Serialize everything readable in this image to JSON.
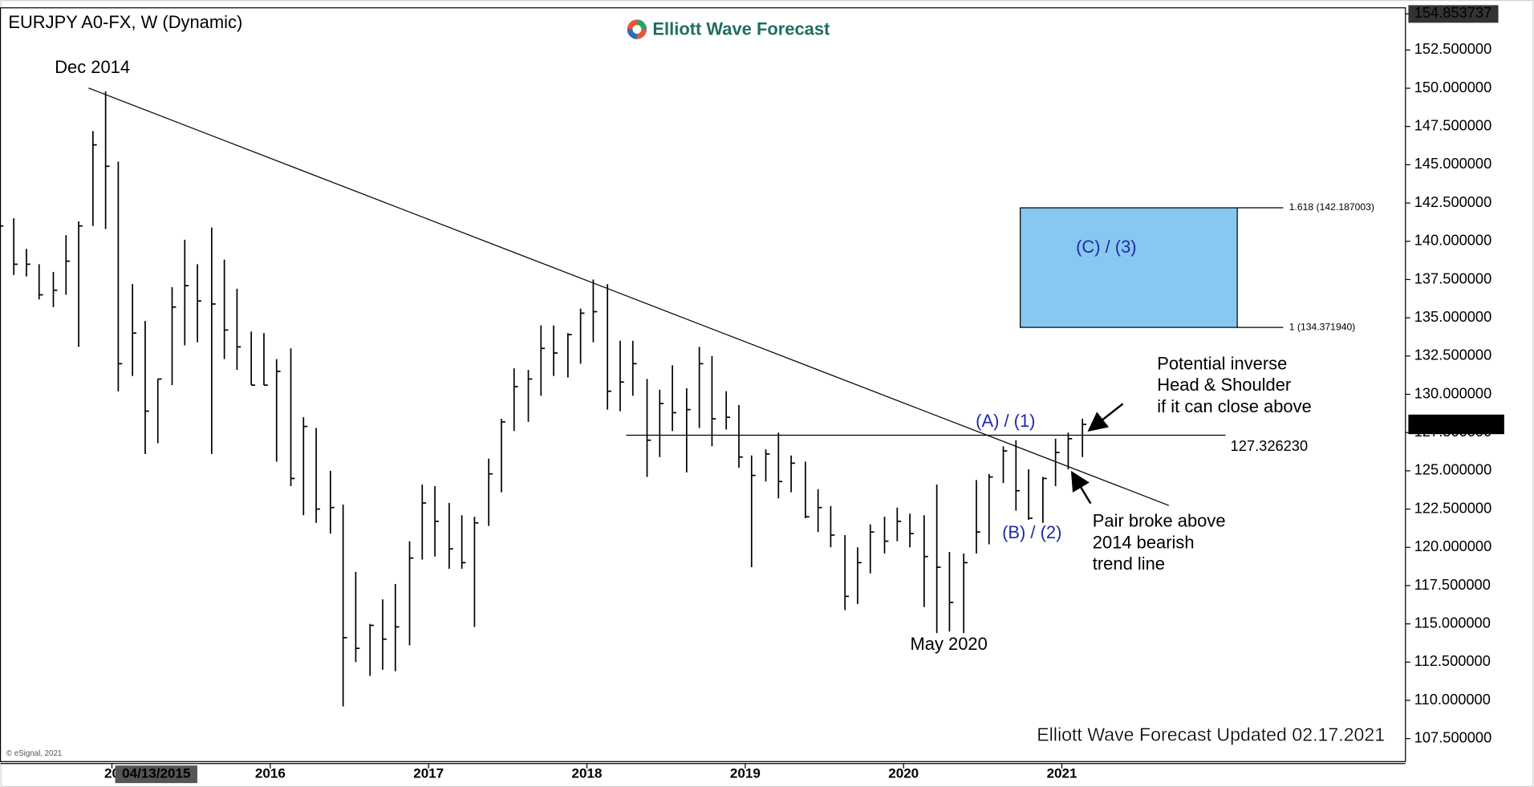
{
  "chart_data": {
    "type": "ohlc",
    "title": "EURJPY A0-FX, W (Dynamic)",
    "logo": "Elliott Wave Forecast",
    "footer": "Elliott Wave Forecast Updated 02.17.2021",
    "copyright": "© eSignal, 2021",
    "color": "#000000",
    "x": [
      2014.29,
      2014.38,
      2014.46,
      2014.54,
      2014.63,
      2014.71,
      2014.79,
      2014.88,
      2014.96,
      2015.04,
      2015.13,
      2015.21,
      2015.29,
      2015.38,
      2015.46,
      2015.54,
      2015.63,
      2015.71,
      2015.79,
      2015.88,
      2015.96,
      2016.04,
      2016.13,
      2016.21,
      2016.29,
      2016.38,
      2016.46,
      2016.54,
      2016.63,
      2016.71,
      2016.79,
      2016.88,
      2016.96,
      2017.04,
      2017.13,
      2017.21,
      2017.29,
      2017.38,
      2017.46,
      2017.54,
      2017.63,
      2017.71,
      2017.79,
      2017.88,
      2017.96,
      2018.04,
      2018.13,
      2018.21,
      2018.29,
      2018.38,
      2018.46,
      2018.54,
      2018.63,
      2018.71,
      2018.79,
      2018.88,
      2018.96,
      2019.04,
      2019.13,
      2019.21,
      2019.29,
      2019.38,
      2019.46,
      2019.54,
      2019.63,
      2019.71,
      2019.79,
      2019.88,
      2019.96,
      2020.04,
      2020.13,
      2020.21,
      2020.29,
      2020.38,
      2020.46,
      2020.54,
      2020.63,
      2020.71,
      2020.79,
      2020.88,
      2020.96,
      2021.04,
      2021.13
    ],
    "high": [
      142.0,
      141.5,
      139.5,
      138.5,
      138.0,
      140.4,
      141.3,
      147.2,
      149.8,
      145.2,
      137.2,
      134.8,
      131.0,
      137.0,
      140.1,
      138.5,
      140.9,
      138.8,
      136.9,
      134.1,
      134.0,
      132.3,
      133.0,
      128.5,
      127.8,
      125.0,
      122.8,
      118.4,
      115.0,
      116.6,
      117.6,
      120.4,
      124.1,
      124.0,
      122.9,
      122.1,
      122.0,
      125.8,
      128.4,
      131.7,
      131.6,
      134.5,
      134.5,
      134.0,
      135.6,
      137.5,
      137.2,
      133.5,
      133.5,
      131.0,
      130.3,
      131.9,
      130.4,
      133.1,
      132.5,
      130.2,
      129.3,
      126.0,
      126.4,
      127.5,
      126.0,
      125.6,
      123.8,
      122.7,
      120.8,
      120.0,
      121.5,
      122.0,
      122.6,
      122.2,
      122.1,
      124.1,
      119.7,
      119.6,
      124.4,
      124.8,
      126.6,
      127.0,
      125.1,
      124.6,
      127.1,
      127.5,
      128.4
    ],
    "low": [
      139.5,
      137.8,
      137.7,
      136.2,
      135.7,
      136.5,
      133.1,
      141.0,
      140.8,
      130.2,
      131.2,
      126.1,
      126.8,
      130.6,
      133.2,
      133.4,
      126.1,
      132.3,
      131.6,
      130.6,
      130.6,
      125.6,
      124.0,
      122.1,
      121.6,
      120.9,
      109.6,
      112.5,
      111.6,
      112.0,
      111.9,
      113.6,
      119.2,
      119.4,
      118.6,
      118.6,
      114.8,
      121.4,
      123.6,
      127.6,
      128.2,
      129.9,
      131.2,
      131.1,
      132.0,
      133.4,
      129.0,
      128.9,
      129.9,
      124.6,
      125.9,
      127.6,
      124.9,
      127.8,
      126.6,
      127.7,
      125.2,
      118.7,
      124.3,
      123.2,
      123.6,
      121.9,
      121.0,
      120.0,
      115.9,
      116.3,
      118.3,
      119.6,
      120.4,
      120.0,
      116.1,
      114.4,
      114.5,
      114.4,
      119.6,
      120.2,
      124.2,
      122.4,
      121.8,
      121.6,
      124.0,
      125.1,
      125.9
    ],
    "close": [
      141.0,
      138.5,
      138.5,
      136.5,
      136.8,
      138.7,
      141.0,
      146.3,
      144.9,
      132.0,
      134.0,
      128.9,
      131.0,
      135.7,
      137.1,
      136.1,
      135.9,
      134.2,
      133.1,
      130.6,
      130.6,
      131.5,
      124.5,
      127.9,
      122.5,
      122.6,
      114.1,
      113.4,
      114.9,
      114.0,
      114.8,
      119.3,
      122.9,
      121.7,
      119.9,
      119.0,
      121.6,
      124.8,
      128.2,
      130.5,
      131.0,
      133.0,
      132.7,
      133.9,
      135.3,
      135.4,
      130.2,
      130.8,
      132.0,
      127.0,
      129.4,
      128.8,
      129.0,
      132.0,
      128.4,
      128.5,
      125.9,
      124.7,
      126.1,
      124.3,
      125.5,
      122.0,
      122.6,
      120.8,
      116.8,
      119.0,
      121.0,
      120.4,
      121.7,
      120.9,
      119.4,
      118.7,
      116.4,
      119.0,
      121.0,
      124.6,
      126.3,
      123.7,
      121.9,
      124.5,
      126.2,
      127.1,
      128.036
    ],
    "xlim": [
      2014.296,
      2023.17
    ],
    "xticks": [
      {
        "value": 2015,
        "label": "20"
      },
      2016,
      2017,
      2018,
      2019,
      2020,
      2021
    ],
    "cursor_date": {
      "value": 2015.28,
      "label": "04/13/2015"
    },
    "ylim": [
      106,
      155
    ],
    "yticks": [
      {
        "value": 107.5,
        "label": "107.500000"
      },
      {
        "value": 110,
        "label": "110.000000"
      },
      {
        "value": 112.5,
        "label": "112.500000"
      },
      {
        "value": 115,
        "label": "115.000000"
      },
      {
        "value": 117.5,
        "label": "117.500000"
      },
      {
        "value": 120,
        "label": "120.000000"
      },
      {
        "value": 122.5,
        "label": "122.500000"
      },
      {
        "value": 125,
        "label": "125.000000"
      },
      {
        "value": 127.5,
        "label": "127.500000"
      },
      {
        "value": 130,
        "label": "130.000000"
      },
      {
        "value": 132.5,
        "label": "132.500000"
      },
      {
        "value": 135,
        "label": "135.000000"
      },
      {
        "value": 137.5,
        "label": "137.500000"
      },
      {
        "value": 140,
        "label": "140.000000"
      },
      {
        "value": 142.5,
        "label": "142.500000"
      },
      {
        "value": 145,
        "label": "145.000000"
      },
      {
        "value": 147.5,
        "label": "147.500000"
      },
      {
        "value": 150,
        "label": "150.000000"
      },
      {
        "value": 152.5,
        "label": "152.500000"
      },
      154.853737
    ],
    "last_price": {
      "value": 128.036,
      "label": "128.036000"
    },
    "level": {
      "value": 127.32623,
      "label": "127.326230"
    },
    "fib": [
      {
        "value": 142.187003,
        "label": "1.618 (142.187003)"
      },
      {
        "value": 134.37194,
        "label": "1 (134.371940)"
      }
    ],
    "zone_label": "(C) / (3)",
    "annotations": [
      [
        "Dec 2014"
      ],
      [
        "May 2020"
      ],
      [
        "(A) / (1)"
      ],
      [
        "(B) / (2)"
      ],
      [
        "Potential inverse",
        "Head & Shoulder",
        "if it can close above"
      ],
      [
        "Pair broke above",
        "2014 bearish",
        "trend line"
      ]
    ]
  }
}
